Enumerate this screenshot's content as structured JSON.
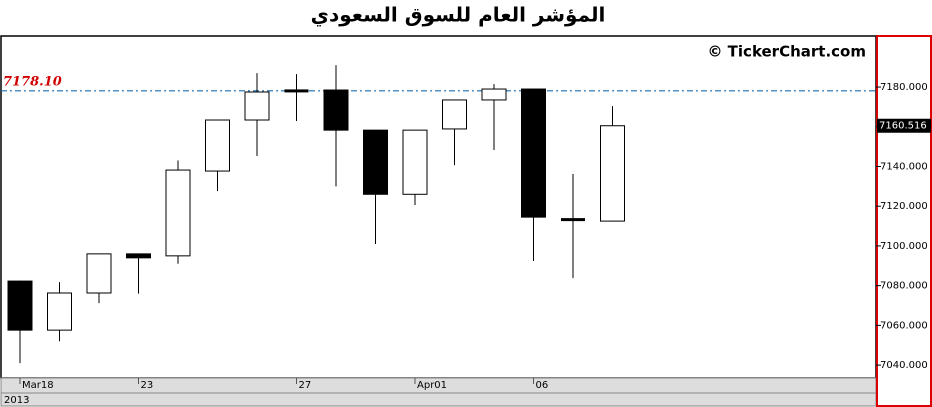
{
  "chart_data": {
    "type": "candlestick",
    "title": "المؤشر العام للسوق السعودي",
    "watermark": "© TickerChart.com",
    "year_label": "2013",
    "categories": [
      "Mar18",
      null,
      null,
      "23",
      null,
      null,
      null,
      "27",
      null,
      null,
      "Apr01",
      null,
      null,
      "06",
      null,
      null
    ],
    "open": [
      7082.3,
      7057.6,
      7076.3,
      7096.0,
      7095.0,
      7137.7,
      7163.4,
      7178.3,
      7178.5,
      7158.3,
      7126.0,
      7158.9,
      7173.5,
      7179.0,
      7113.5,
      7112.5
    ],
    "high": [
      7082.5,
      7081.8,
      7096.0,
      7096.0,
      7143.0,
      7163.4,
      7187.0,
      7186.5,
      7191.0,
      7158.3,
      7158.3,
      7173.5,
      7181.5,
      7179.0,
      7136.2,
      7170.4
    ],
    "low": [
      7041.0,
      7052.0,
      7071.2,
      7076.0,
      7091.0,
      7127.6,
      7145.3,
      7162.9,
      7130.0,
      7101.0,
      7120.6,
      7140.7,
      7148.3,
      7092.4,
      7083.8,
      7112.5
    ],
    "close": [
      7057.6,
      7076.3,
      7096.0,
      7094.0,
      7138.2,
      7163.4,
      7177.5,
      7178.1,
      7158.3,
      7126.0,
      7158.3,
      7173.5,
      7179.0,
      7114.5,
      7113.5,
      7160.516
    ],
    "up_color": "#ffffff",
    "down_color": "#000000",
    "ylim": [
      7033.5,
      7205.7
    ],
    "yticks": [
      {
        "value": 7040,
        "label": "7040.000"
      },
      {
        "value": 7060,
        "label": "7060.000"
      },
      {
        "value": 7080,
        "label": "7080.000"
      },
      {
        "value": 7100,
        "label": "7100.000"
      },
      {
        "value": 7120,
        "label": "7120.000"
      },
      {
        "value": 7140,
        "label": "7140.000"
      },
      {
        "value": 7160,
        "label": "7160.000"
      },
      {
        "value": 7180,
        "label": "7180.000"
      }
    ],
    "last_price": 7160.516,
    "reference_line": {
      "value": 7178.1,
      "label": "7178.10",
      "color": "#1a6fb0",
      "label_color": "#d00000"
    }
  }
}
